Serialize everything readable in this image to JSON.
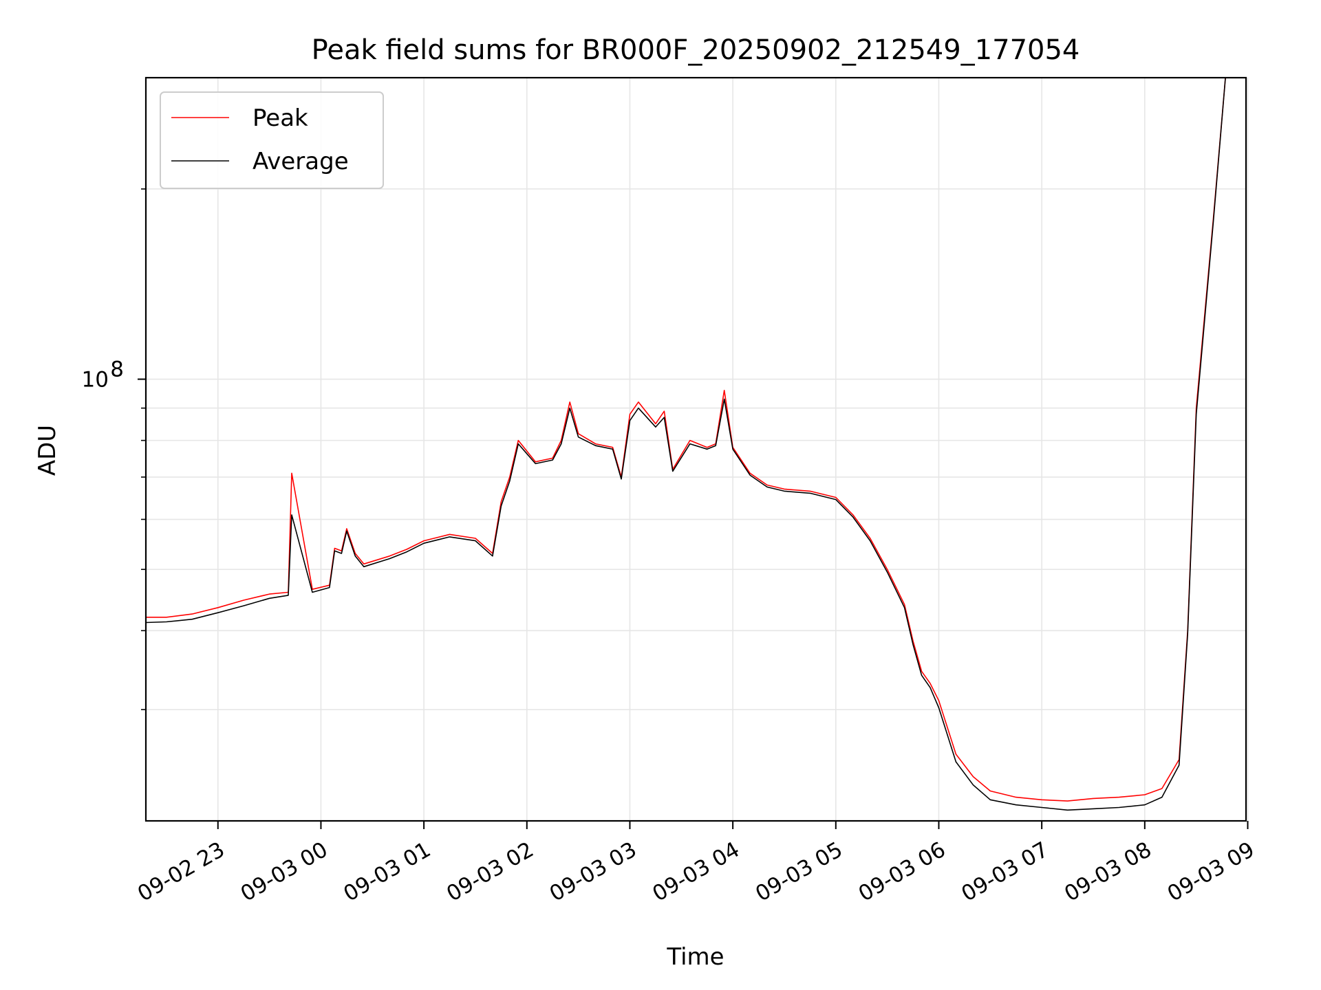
{
  "chart_data": {
    "type": "line",
    "title": "Peak field sums for BR000F_20250902_212549_177054",
    "xlabel": "Time",
    "ylabel": "ADU",
    "yscale": "log",
    "ylim": [
      20000000,
      300000000
    ],
    "xlim": [
      "09-02 22:18",
      "09-03 08:59"
    ],
    "grid": true,
    "legend_position": "top-left",
    "x_ticks": [
      "09-02 23",
      "09-03 00",
      "09-03 01",
      "09-03 02",
      "09-03 03",
      "09-03 04",
      "09-03 05",
      "09-03 06",
      "09-03 07",
      "09-03 08",
      "09-03 09"
    ],
    "y_ticks": [
      {
        "label": "10",
        "exponent": "8",
        "value": 100000000
      }
    ],
    "x": [
      "09-02 22:18",
      "09-02 22:30",
      "09-02 22:45",
      "09-02 23:00",
      "09-02 23:15",
      "09-02 23:30",
      "09-02 23:41",
      "09-02 23:43",
      "09-02 23:55",
      "09-03 00:05",
      "09-03 00:08",
      "09-03 00:12",
      "09-03 00:15",
      "09-03 00:20",
      "09-03 00:25",
      "09-03 00:40",
      "09-03 00:50",
      "09-03 01:00",
      "09-03 01:15",
      "09-03 01:30",
      "09-03 01:40",
      "09-03 01:45",
      "09-03 01:50",
      "09-03 01:55",
      "09-03 02:05",
      "09-03 02:15",
      "09-03 02:20",
      "09-03 02:25",
      "09-03 02:30",
      "09-03 02:40",
      "09-03 02:50",
      "09-03 02:55",
      "09-03 03:00",
      "09-03 03:05",
      "09-03 03:15",
      "09-03 03:20",
      "09-03 03:25",
      "09-03 03:35",
      "09-03 03:45",
      "09-03 03:50",
      "09-03 03:55",
      "09-03 04:00",
      "09-03 04:10",
      "09-03 04:20",
      "09-03 04:30",
      "09-03 04:45",
      "09-03 05:00",
      "09-03 05:10",
      "09-03 05:20",
      "09-03 05:30",
      "09-03 05:40",
      "09-03 05:45",
      "09-03 05:50",
      "09-03 05:55",
      "09-03 06:00",
      "09-03 06:10",
      "09-03 06:20",
      "09-03 06:30",
      "09-03 06:45",
      "09-03 07:00",
      "09-03 07:15",
      "09-03 07:30",
      "09-03 07:45",
      "09-03 08:00",
      "09-03 08:10",
      "09-03 08:20",
      "09-03 08:25",
      "09-03 08:30",
      "09-03 08:40",
      "09-03 08:47"
    ],
    "series": [
      {
        "name": "Peak",
        "color": "#ff0000",
        "values": [
          42000000,
          42000000,
          42500000,
          43500000,
          44700000,
          45700000,
          46000000,
          71000000,
          46500000,
          47200000,
          54000000,
          53500000,
          58000000,
          53000000,
          51000000,
          52500000,
          53800000,
          55500000,
          56800000,
          56000000,
          53000000,
          64000000,
          70000000,
          80000000,
          74000000,
          75000000,
          80000000,
          92000000,
          82000000,
          79000000,
          78000000,
          70000000,
          88000000,
          92000000,
          85000000,
          89000000,
          72000000,
          80000000,
          78000000,
          79000000,
          96000000,
          78000000,
          71000000,
          68000000,
          67000000,
          66500000,
          65000000,
          61000000,
          56000000,
          50000000,
          44000000,
          38500000,
          34500000,
          33000000,
          31000000,
          25500000,
          23500000,
          22300000,
          21800000,
          21600000,
          21500000,
          21700000,
          21800000,
          22000000,
          22500000,
          25000000,
          40000000,
          90000000,
          180000000,
          300000000
        ]
      },
      {
        "name": "Average",
        "color": "#000000",
        "values": [
          41200000,
          41300000,
          41700000,
          42700000,
          43800000,
          45000000,
          45500000,
          61000000,
          46000000,
          46800000,
          53500000,
          53000000,
          57500000,
          52500000,
          50500000,
          52000000,
          53300000,
          55000000,
          56300000,
          55500000,
          52500000,
          63000000,
          69000000,
          79000000,
          73500000,
          74500000,
          79000000,
          90000000,
          81000000,
          78500000,
          77500000,
          69500000,
          86000000,
          90000000,
          84000000,
          87000000,
          71500000,
          79000000,
          77500000,
          78500000,
          93000000,
          77500000,
          70500000,
          67500000,
          66500000,
          66000000,
          64500000,
          60500000,
          55500000,
          49500000,
          43500000,
          38000000,
          34000000,
          32500000,
          30200000,
          24800000,
          22800000,
          21600000,
          21200000,
          21000000,
          20800000,
          20900000,
          21000000,
          21200000,
          21800000,
          24500000,
          39500000,
          88000000,
          178000000,
          300000000
        ]
      }
    ]
  }
}
